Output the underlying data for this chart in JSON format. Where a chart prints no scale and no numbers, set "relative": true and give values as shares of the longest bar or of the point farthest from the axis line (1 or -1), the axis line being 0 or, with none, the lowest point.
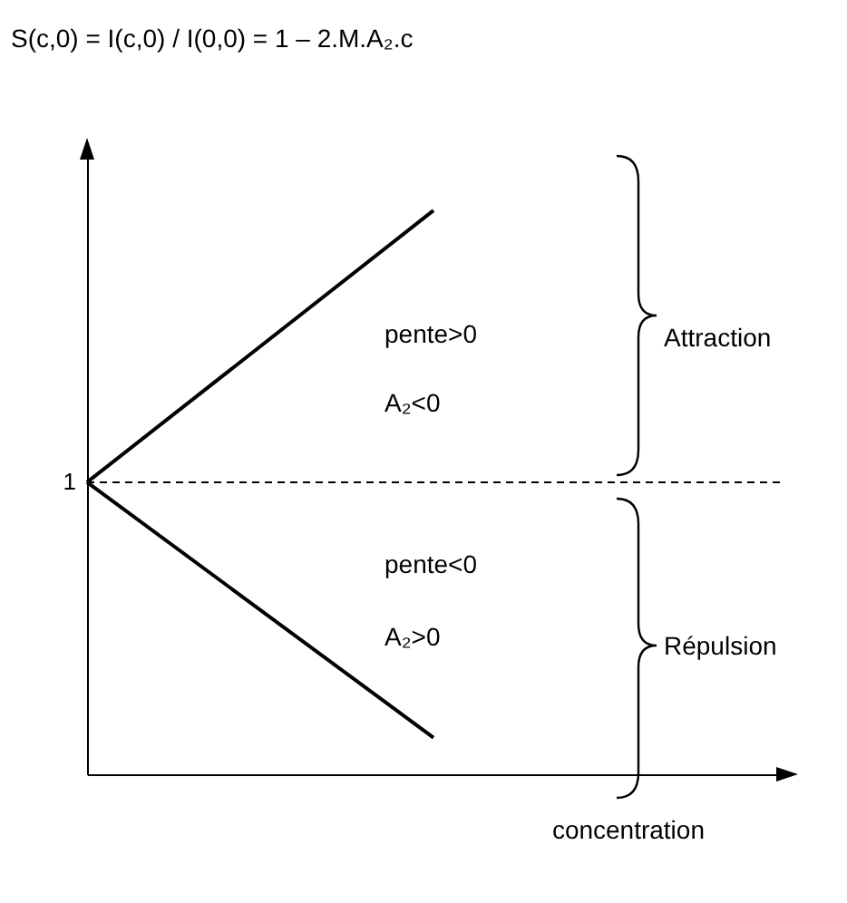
{
  "chart_data": {
    "type": "line",
    "title": "S(c,0) = I(c,0) / I(0,0) = 1 – 2.M.A₂.c",
    "xlabel": "concentration",
    "relative": true,
    "categories": [
      null,
      null,
      null
    ],
    "series": [
      {
        "color": "#000000",
        "values": [
          0.518,
          1,
          null
        ]
      },
      {
        "color": "#000000",
        "values": [
          0.518,
          0.065,
          null
        ]
      }
    ],
    "ref_lines": [
      {
        "axis": "y",
        "value": 0.518,
        "label": "1",
        "color": "#000000",
        "line_style": "dashed"
      }
    ],
    "annotations": [
      "pente>0",
      "A₂<0",
      "pente<0",
      "A₂>0",
      "Attraction",
      "Répulsion"
    ],
    "marker": "none",
    "line_style": "solid"
  }
}
